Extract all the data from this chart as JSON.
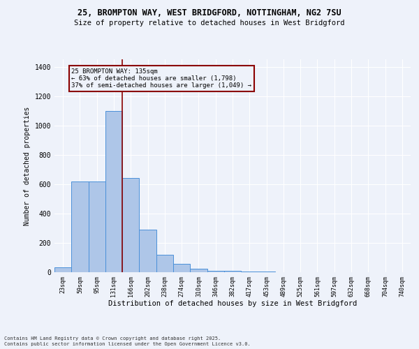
{
  "title1": "25, BROMPTON WAY, WEST BRIDGFORD, NOTTINGHAM, NG2 7SU",
  "title2": "Size of property relative to detached houses in West Bridgford",
  "xlabel": "Distribution of detached houses by size in West Bridgford",
  "ylabel": "Number of detached properties",
  "bin_labels": [
    "23sqm",
    "59sqm",
    "95sqm",
    "131sqm",
    "166sqm",
    "202sqm",
    "238sqm",
    "274sqm",
    "310sqm",
    "346sqm",
    "382sqm",
    "417sqm",
    "453sqm",
    "489sqm",
    "525sqm",
    "561sqm",
    "597sqm",
    "632sqm",
    "668sqm",
    "704sqm",
    "740sqm"
  ],
  "bar_heights": [
    35,
    620,
    620,
    1100,
    640,
    290,
    120,
    55,
    25,
    10,
    10,
    5,
    5,
    2,
    2,
    2,
    2,
    2,
    2,
    2,
    2
  ],
  "bar_color": "#aec6e8",
  "bar_edge_color": "#4a90d9",
  "annotation_title": "25 BROMPTON WAY: 135sqm",
  "annotation_line1": "← 63% of detached houses are smaller (1,798)",
  "annotation_line2": "37% of semi-detached houses are larger (1,049) →",
  "vline_color": "#8b0000",
  "annotation_box_color": "#8b0000",
  "background_color": "#eef2fa",
  "footer1": "Contains HM Land Registry data © Crown copyright and database right 2025.",
  "footer2": "Contains public sector information licensed under the Open Government Licence v3.0.",
  "ylim": [
    0,
    1450
  ],
  "yticks": [
    0,
    200,
    400,
    600,
    800,
    1000,
    1200,
    1400
  ]
}
